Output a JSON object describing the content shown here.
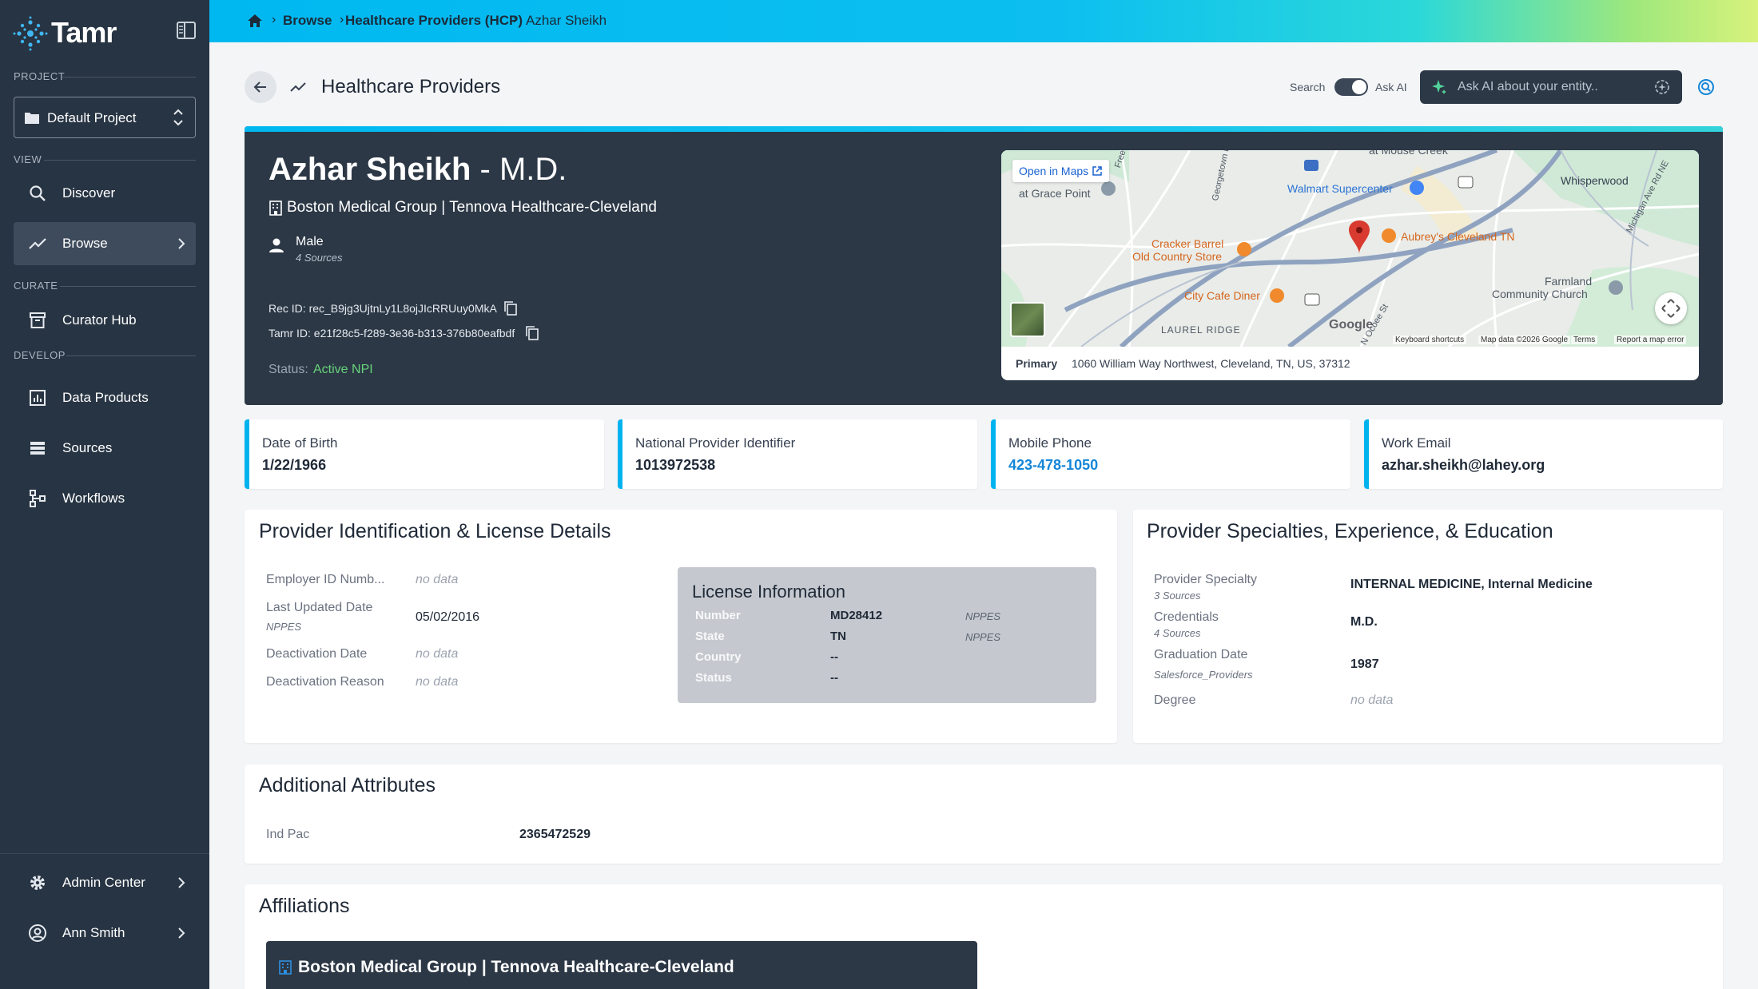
{
  "app": {
    "name": "Tamr"
  },
  "sidebar": {
    "project_section": "PROJECT",
    "project_name": "Default Project",
    "view_section": "VIEW",
    "curate_section": "CURATE",
    "develop_section": "DEVELOP",
    "items": [
      {
        "label": "Discover",
        "icon": "search-icon"
      },
      {
        "label": "Browse",
        "icon": "trend-icon"
      },
      {
        "label": "Curator Hub",
        "icon": "archive-icon"
      },
      {
        "label": "Data Products",
        "icon": "chart-icon"
      },
      {
        "label": "Sources",
        "icon": "database-icon"
      },
      {
        "label": "Workflows",
        "icon": "workflow-icon"
      }
    ],
    "admin": "Admin Center",
    "user": "Ann Smith"
  },
  "breadcrumb": {
    "items": [
      "Browse",
      "Healthcare Providers (HCP)",
      "Azhar Sheikh"
    ]
  },
  "header": {
    "title": "Healthcare Providers",
    "search_label": "Search",
    "ask_ai_label": "Ask AI",
    "ai_placeholder": "Ask AI about your entity.."
  },
  "hero": {
    "name": "Azhar Sheikh",
    "suffix": " - M.D.",
    "organization": "Boston Medical Group | Tennova Healthcare-Cleveland",
    "gender": "Male",
    "gender_sources": "4 Sources",
    "rec_id": "Rec ID: rec_B9jg3UjtnLy1L8ojJIcRRUuy0MkA",
    "tamr_id": "Tamr ID: e21f28c5-f289-3e36-b313-376b80eafbdf",
    "status_label": "Status:",
    "status_value": "Active NPI"
  },
  "map": {
    "open_label": "Open in Maps",
    "labels": {
      "whisperwood": "Whisperwood",
      "walmart": "Walmart Supercenter",
      "cracker1": "Cracker Barrel",
      "cracker2": "Old Country Store",
      "aubreys": "Aubrey's Cleveland TN",
      "citycafe": "City Cafe Diner",
      "farmland1": "Farmland",
      "farmland2": "Community Church",
      "laurel": "LAUREL RIDGE",
      "gracepoint": "at Grace Point",
      "mousecreek": "at Mouse Creek",
      "freewill": "Freewill Rd",
      "georgetown": "Georgetown Rd",
      "michigan": "Michigan Ave Rd NE",
      "nolst": "N Ocoee St",
      "google": "Google"
    },
    "footer": {
      "shortcuts": "Keyboard shortcuts",
      "mapdata": "Map data ©2026 Google",
      "terms": "Terms",
      "report": "Report a map error"
    },
    "primary_label": "Primary",
    "primary_address": "1060 William Way Northwest, Cleveland, TN, US, 37312"
  },
  "stats": [
    {
      "label": "Date of Birth",
      "value": "1/22/1966"
    },
    {
      "label": "National Provider Identifier",
      "value": "1013972538"
    },
    {
      "label": "Mobile Phone",
      "value": "423-478-1050"
    },
    {
      "label": "Work Email",
      "value": "azhar.sheikh@lahey.org"
    }
  ],
  "identification": {
    "title": "Provider Identification & License Details",
    "employer_label": "Employer ID Numb...",
    "employer_value": "no data",
    "updated_label": "Last Updated Date",
    "updated_source": "NPPES",
    "updated_value": "05/02/2016",
    "deact_date_label": "Deactivation Date",
    "deact_date_value": "no data",
    "deact_reason_label": "Deactivation Reason",
    "deact_reason_value": "no data",
    "license": {
      "title": "License Information",
      "rows": [
        {
          "label": "Number",
          "value": "MD28412",
          "source": "NPPES"
        },
        {
          "label": "State",
          "value": "TN",
          "source": "NPPES"
        },
        {
          "label": "Country",
          "value": "--",
          "source": ""
        },
        {
          "label": "Status",
          "value": "--",
          "source": ""
        }
      ]
    }
  },
  "specialties": {
    "title": "Provider Specialties, Experience, & Education",
    "specialty_label": "Provider Specialty",
    "specialty_sources": "3 Sources",
    "specialty_value": "INTERNAL MEDICINE, Internal Medicine",
    "cred_label": "Credentials",
    "cred_sources": "4 Sources",
    "cred_value": "M.D.",
    "grad_label": "Graduation Date",
    "grad_source": "Salesforce_Providers",
    "grad_value": "1987",
    "degree_label": "Degree",
    "degree_value": "no data"
  },
  "additional": {
    "title": "Additional Attributes",
    "indpac_label": "Ind Pac",
    "indpac_value": "2365472529"
  },
  "affiliations": {
    "title": "Affiliations",
    "org": "Boston Medical Group | Tennova Healthcare-Cleveland"
  },
  "colors": {
    "sidebar": "#273443",
    "hero": "#2c3846",
    "accent": "#00b3ef",
    "status_active": "#67d37a",
    "link": "#1486d8"
  }
}
